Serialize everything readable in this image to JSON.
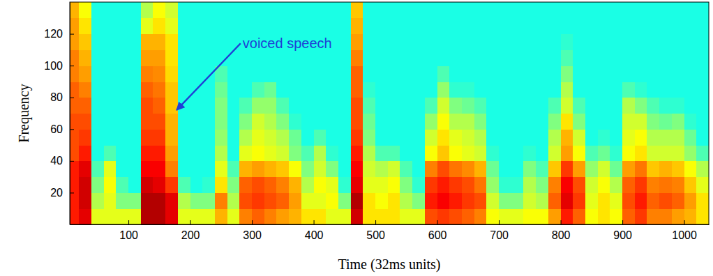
{
  "chart_data": {
    "type": "heatmap",
    "xlabel": "Time (32ms units)",
    "ylabel": "Frequency",
    "xlim": [
      5,
      1040
    ],
    "ylim": [
      0,
      140
    ],
    "xticks": [
      100,
      200,
      300,
      400,
      500,
      600,
      700,
      800,
      900,
      1000
    ],
    "yticks": [
      20,
      40,
      60,
      80,
      100,
      120
    ],
    "color": "jet",
    "zlim": [
      0,
      1
    ],
    "time_bins": [
      0,
      20,
      40,
      60,
      80,
      100,
      120,
      140,
      160,
      180,
      200,
      220,
      240,
      260,
      280,
      300,
      320,
      340,
      360,
      380,
      400,
      420,
      440,
      460,
      480,
      500,
      520,
      540,
      560,
      580,
      600,
      620,
      640,
      660,
      680,
      700,
      720,
      740,
      760,
      780,
      800,
      820,
      840,
      860,
      880,
      900,
      920,
      940,
      960,
      980,
      1000,
      1020,
      1040
    ],
    "frequency_bins": [
      0,
      10,
      20,
      30,
      40,
      50,
      60,
      70,
      80,
      90,
      100,
      110,
      120,
      130,
      140
    ],
    "cells": [
      [
        0.85,
        0.85,
        0.85,
        0.85,
        0.8,
        0.8,
        0.8,
        0.78,
        0.78,
        0.75,
        0.75,
        0.72,
        0.72,
        0.7
      ],
      [
        0.9,
        0.92,
        0.92,
        0.9,
        0.85,
        0.82,
        0.8,
        0.78,
        0.75,
        0.72,
        0.7,
        0.68,
        0.65,
        0.62
      ],
      [
        0.6,
        0.55,
        0.5,
        0.45,
        0.4,
        0.4,
        0.4,
        0.4,
        0.4,
        0.4,
        0.4,
        0.4,
        0.4,
        0.4
      ],
      [
        0.6,
        0.6,
        0.62,
        0.6,
        0.45,
        0.4,
        0.4,
        0.4,
        0.4,
        0.4,
        0.4,
        0.4,
        0.4,
        0.4
      ],
      [
        0.6,
        0.5,
        0.45,
        0.4,
        0.4,
        0.4,
        0.4,
        0.4,
        0.4,
        0.4,
        0.4,
        0.4,
        0.4,
        0.4
      ],
      [
        0.6,
        0.5,
        0.4,
        0.4,
        0.4,
        0.4,
        0.4,
        0.4,
        0.4,
        0.4,
        0.4,
        0.4,
        0.4,
        0.4
      ],
      [
        0.95,
        0.95,
        0.92,
        0.88,
        0.85,
        0.82,
        0.8,
        0.8,
        0.78,
        0.75,
        0.72,
        0.7,
        0.6,
        0.55
      ],
      [
        0.95,
        0.95,
        0.9,
        0.88,
        0.85,
        0.82,
        0.8,
        0.78,
        0.76,
        0.74,
        0.72,
        0.7,
        0.65,
        0.62
      ],
      [
        0.9,
        0.9,
        0.82,
        0.75,
        0.72,
        0.7,
        0.7,
        0.68,
        0.68,
        0.66,
        0.65,
        0.65,
        0.6,
        0.58
      ],
      [
        0.6,
        0.55,
        0.45,
        0.4,
        0.4,
        0.4,
        0.4,
        0.4,
        0.4,
        0.4,
        0.4,
        0.4,
        0.4,
        0.4
      ],
      [
        0.6,
        0.5,
        0.4,
        0.4,
        0.4,
        0.4,
        0.4,
        0.4,
        0.4,
        0.4,
        0.4,
        0.4,
        0.4,
        0.4
      ],
      [
        0.6,
        0.5,
        0.42,
        0.4,
        0.4,
        0.4,
        0.4,
        0.4,
        0.4,
        0.4,
        0.4,
        0.4,
        0.4,
        0.4
      ],
      [
        0.7,
        0.75,
        0.65,
        0.6,
        0.55,
        0.52,
        0.5,
        0.5,
        0.48,
        0.45,
        0.4,
        0.4,
        0.4,
        0.4
      ],
      [
        0.6,
        0.55,
        0.5,
        0.45,
        0.4,
        0.4,
        0.4,
        0.4,
        0.4,
        0.4,
        0.4,
        0.4,
        0.4,
        0.4
      ],
      [
        0.75,
        0.8,
        0.78,
        0.7,
        0.6,
        0.55,
        0.5,
        0.45,
        0.4,
        0.4,
        0.4,
        0.4,
        0.4,
        0.4
      ],
      [
        0.78,
        0.82,
        0.8,
        0.72,
        0.62,
        0.6,
        0.58,
        0.52,
        0.45,
        0.4,
        0.4,
        0.4,
        0.4,
        0.4
      ],
      [
        0.75,
        0.8,
        0.78,
        0.7,
        0.6,
        0.58,
        0.55,
        0.52,
        0.48,
        0.4,
        0.4,
        0.4,
        0.4,
        0.4
      ],
      [
        0.72,
        0.78,
        0.75,
        0.68,
        0.58,
        0.55,
        0.5,
        0.45,
        0.4,
        0.4,
        0.4,
        0.4,
        0.4,
        0.4
      ],
      [
        0.7,
        0.72,
        0.7,
        0.62,
        0.5,
        0.48,
        0.42,
        0.4,
        0.4,
        0.4,
        0.4,
        0.4,
        0.4,
        0.4
      ],
      [
        0.65,
        0.6,
        0.55,
        0.5,
        0.45,
        0.4,
        0.4,
        0.4,
        0.4,
        0.4,
        0.4,
        0.4,
        0.4,
        0.4
      ],
      [
        0.65,
        0.6,
        0.62,
        0.58,
        0.55,
        0.45,
        0.4,
        0.4,
        0.4,
        0.4,
        0.4,
        0.4,
        0.4,
        0.4
      ],
      [
        0.6,
        0.62,
        0.6,
        0.5,
        0.42,
        0.4,
        0.4,
        0.4,
        0.4,
        0.4,
        0.4,
        0.4,
        0.4,
        0.4
      ],
      [
        0.6,
        0.5,
        0.42,
        0.4,
        0.4,
        0.4,
        0.4,
        0.4,
        0.4,
        0.4,
        0.4,
        0.4,
        0.4,
        0.4
      ],
      [
        0.92,
        0.95,
        0.9,
        0.88,
        0.85,
        0.82,
        0.8,
        0.8,
        0.78,
        0.78,
        0.75,
        0.72,
        0.7,
        0.68
      ],
      [
        0.65,
        0.65,
        0.6,
        0.58,
        0.55,
        0.5,
        0.48,
        0.45,
        0.42,
        0.4,
        0.4,
        0.4,
        0.4,
        0.4
      ],
      [
        0.65,
        0.62,
        0.6,
        0.55,
        0.45,
        0.4,
        0.4,
        0.4,
        0.4,
        0.4,
        0.4,
        0.4,
        0.4,
        0.4
      ],
      [
        0.65,
        0.65,
        0.62,
        0.58,
        0.45,
        0.4,
        0.4,
        0.4,
        0.4,
        0.4,
        0.4,
        0.4,
        0.4,
        0.4
      ],
      [
        0.6,
        0.55,
        0.5,
        0.45,
        0.4,
        0.4,
        0.4,
        0.4,
        0.4,
        0.4,
        0.4,
        0.4,
        0.4,
        0.4
      ],
      [
        0.6,
        0.5,
        0.42,
        0.4,
        0.4,
        0.4,
        0.4,
        0.4,
        0.4,
        0.4,
        0.4,
        0.4,
        0.4,
        0.4
      ],
      [
        0.8,
        0.85,
        0.82,
        0.75,
        0.62,
        0.58,
        0.52,
        0.45,
        0.4,
        0.4,
        0.4,
        0.4,
        0.4,
        0.4
      ],
      [
        0.82,
        0.88,
        0.85,
        0.8,
        0.68,
        0.65,
        0.62,
        0.58,
        0.52,
        0.45,
        0.4,
        0.4,
        0.4,
        0.4
      ],
      [
        0.8,
        0.85,
        0.82,
        0.76,
        0.62,
        0.6,
        0.55,
        0.5,
        0.42,
        0.4,
        0.4,
        0.4,
        0.4,
        0.4
      ],
      [
        0.78,
        0.82,
        0.8,
        0.74,
        0.6,
        0.58,
        0.55,
        0.48,
        0.42,
        0.4,
        0.4,
        0.4,
        0.4,
        0.4
      ],
      [
        0.75,
        0.8,
        0.76,
        0.7,
        0.58,
        0.55,
        0.5,
        0.45,
        0.4,
        0.4,
        0.4,
        0.4,
        0.4,
        0.4
      ],
      [
        0.62,
        0.58,
        0.52,
        0.48,
        0.42,
        0.4,
        0.4,
        0.4,
        0.4,
        0.4,
        0.4,
        0.4,
        0.4,
        0.4
      ],
      [
        0.6,
        0.5,
        0.42,
        0.4,
        0.4,
        0.4,
        0.4,
        0.4,
        0.4,
        0.4,
        0.4,
        0.4,
        0.4,
        0.4
      ],
      [
        0.6,
        0.5,
        0.42,
        0.4,
        0.4,
        0.4,
        0.4,
        0.4,
        0.4,
        0.4,
        0.4,
        0.4,
        0.4,
        0.4
      ],
      [
        0.62,
        0.58,
        0.55,
        0.5,
        0.42,
        0.4,
        0.4,
        0.4,
        0.4,
        0.4,
        0.4,
        0.4,
        0.4,
        0.4
      ],
      [
        0.62,
        0.55,
        0.5,
        0.45,
        0.4,
        0.4,
        0.4,
        0.4,
        0.4,
        0.4,
        0.4,
        0.4,
        0.4,
        0.4
      ],
      [
        0.72,
        0.78,
        0.75,
        0.68,
        0.58,
        0.55,
        0.5,
        0.45,
        0.4,
        0.4,
        0.4,
        0.4,
        0.4,
        0.4
      ],
      [
        0.85,
        0.9,
        0.88,
        0.82,
        0.72,
        0.7,
        0.65,
        0.58,
        0.55,
        0.5,
        0.45,
        0.42,
        0.4,
        0.4
      ],
      [
        0.78,
        0.82,
        0.8,
        0.72,
        0.62,
        0.58,
        0.5,
        0.45,
        0.4,
        0.4,
        0.4,
        0.4,
        0.4,
        0.4
      ],
      [
        0.62,
        0.6,
        0.58,
        0.52,
        0.45,
        0.4,
        0.4,
        0.4,
        0.4,
        0.4,
        0.4,
        0.4,
        0.4,
        0.4
      ],
      [
        0.65,
        0.65,
        0.62,
        0.58,
        0.48,
        0.42,
        0.4,
        0.4,
        0.4,
        0.4,
        0.4,
        0.4,
        0.4,
        0.4
      ],
      [
        0.62,
        0.6,
        0.55,
        0.48,
        0.42,
        0.4,
        0.4,
        0.4,
        0.4,
        0.4,
        0.4,
        0.4,
        0.4,
        0.4
      ],
      [
        0.78,
        0.8,
        0.78,
        0.72,
        0.62,
        0.6,
        0.58,
        0.55,
        0.45,
        0.4,
        0.4,
        0.4,
        0.4,
        0.4
      ],
      [
        0.82,
        0.85,
        0.82,
        0.76,
        0.65,
        0.62,
        0.58,
        0.5,
        0.42,
        0.4,
        0.4,
        0.4,
        0.4,
        0.4
      ],
      [
        0.75,
        0.78,
        0.75,
        0.68,
        0.58,
        0.55,
        0.5,
        0.45,
        0.4,
        0.4,
        0.4,
        0.4,
        0.4,
        0.4
      ],
      [
        0.75,
        0.8,
        0.76,
        0.7,
        0.58,
        0.55,
        0.48,
        0.42,
        0.4,
        0.4,
        0.4,
        0.4,
        0.4,
        0.4
      ],
      [
        0.72,
        0.78,
        0.75,
        0.68,
        0.58,
        0.55,
        0.5,
        0.42,
        0.4,
        0.4,
        0.4,
        0.4,
        0.4,
        0.4
      ],
      [
        0.7,
        0.72,
        0.68,
        0.62,
        0.52,
        0.48,
        0.42,
        0.4,
        0.4,
        0.4,
        0.4,
        0.4,
        0.4,
        0.4
      ],
      [
        0.65,
        0.65,
        0.6,
        0.55,
        0.45,
        0.4,
        0.4,
        0.4,
        0.4,
        0.4,
        0.4,
        0.4,
        0.4,
        0.4
      ]
    ],
    "annotations": [
      {
        "text": "voiced speech",
        "x": 285,
        "y": 114,
        "xy": [
          178,
          72
        ]
      }
    ]
  }
}
